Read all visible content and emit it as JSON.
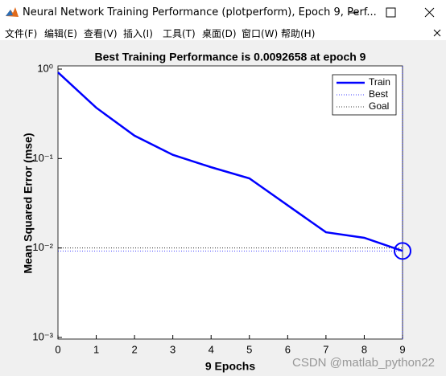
{
  "window": {
    "title": "Neural Network Training Performance (plotperform), Epoch 9, Perf...",
    "menu": [
      "文件(F)",
      "编辑(E)",
      "查看(V)",
      "插入(I)",
      "工具(T)",
      "桌面(D)",
      "窗口(W)",
      "帮助(H)"
    ]
  },
  "chart_data": {
    "type": "line",
    "title": "Best Training Performance is 0.0092658 at epoch 9",
    "x_label": "9 Epochs",
    "y_label": "Mean Squared Error  (mse)",
    "x": [
      0,
      1,
      2,
      3,
      4,
      5,
      6,
      7,
      8,
      9
    ],
    "series": [
      {
        "name": "Train",
        "color": "#0000ff",
        "values": [
          0.92,
          0.37,
          0.18,
          0.11,
          0.08,
          0.06,
          0.03,
          0.015,
          0.013,
          0.0092658
        ]
      },
      {
        "name": "Best",
        "color": "#0000ff",
        "value": 0.0092658,
        "epoch": 9
      },
      {
        "name": "Goal",
        "color": "#000000",
        "value": 0.01
      }
    ],
    "xlim": [
      0,
      9
    ],
    "xticks": [
      0,
      1,
      2,
      3,
      4,
      5,
      6,
      7,
      8,
      9
    ],
    "ylim": [
      0.001,
      1
    ],
    "log_y": true,
    "yticks": [
      {
        "value": 0.001,
        "label": "10⁻³"
      },
      {
        "value": 0.01,
        "label": "10⁻²"
      },
      {
        "value": 0.1,
        "label": "10⁻¹"
      },
      {
        "value": 1,
        "label": "10⁰"
      }
    ],
    "legend": "top-right"
  },
  "watermark": "CSDN @matlab_python22"
}
